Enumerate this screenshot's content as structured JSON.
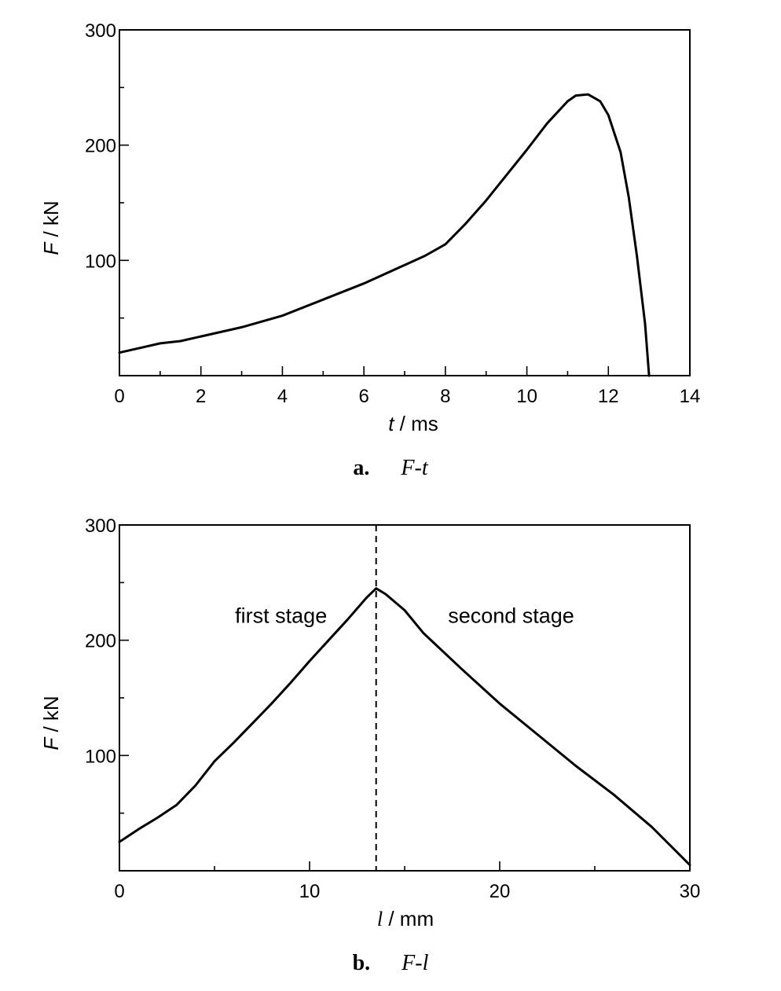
{
  "chart_data": [
    {
      "type": "line",
      "panel_label": "a.",
      "caption": "F-t",
      "xlabel_var": "t",
      "xlabel_unit": " / ms",
      "ylabel_var": "F",
      "ylabel_unit": " / kN",
      "xlim": [
        0,
        14
      ],
      "ylim": [
        0,
        300
      ],
      "xticks": [
        0,
        2,
        4,
        6,
        8,
        10,
        12,
        14
      ],
      "xtick_labels": [
        "0",
        "2",
        "4",
        "6",
        "8",
        "10",
        "12",
        "14"
      ],
      "yticks": [
        100,
        200,
        300
      ],
      "ytick_labels": [
        "100",
        "200",
        "300"
      ],
      "minor_x_step": 1,
      "minor_y_step": 50,
      "grid": false,
      "series": [
        {
          "x": [
            0,
            0.5,
            1,
            1.5,
            2,
            3,
            4,
            5,
            6,
            7,
            7.5,
            8,
            8.5,
            9,
            9.5,
            10,
            10.5,
            11,
            11.2,
            11.5,
            11.8,
            12,
            12.3,
            12.5,
            12.7,
            12.9,
            13.0
          ],
          "y": [
            20,
            24,
            28,
            30,
            34,
            42,
            52,
            66,
            80,
            96,
            104,
            114,
            132,
            152,
            174,
            196,
            219,
            238,
            243,
            244,
            238,
            226,
            194,
            155,
            104,
            45,
            0
          ]
        }
      ]
    },
    {
      "type": "line",
      "panel_label": "b.",
      "caption": "F-l",
      "xlabel_var": "l",
      "xlabel_unit": " / mm",
      "ylabel_var": "F",
      "ylabel_unit": " / kN",
      "xlim": [
        0,
        30
      ],
      "ylim": [
        0,
        300
      ],
      "xticks": [
        0,
        10,
        20,
        30
      ],
      "xtick_labels": [
        "0",
        "10",
        "20",
        "30"
      ],
      "yticks": [
        100,
        200,
        300
      ],
      "ytick_labels": [
        "100",
        "200",
        "300"
      ],
      "minor_x_step": 5,
      "minor_y_step": 50,
      "grid": false,
      "divider_x": 13.5,
      "annotations": [
        {
          "text": "first stage",
          "x": 8.5,
          "y": 215
        },
        {
          "text": "second stage",
          "x": 20.6,
          "y": 215
        }
      ],
      "series": [
        {
          "x": [
            0,
            1,
            2,
            3,
            4,
            5,
            6,
            7,
            8,
            9,
            10,
            11,
            12,
            13,
            13.5,
            14,
            15,
            16,
            18,
            20,
            22,
            24,
            26,
            28,
            30
          ],
          "y": [
            25,
            36,
            46,
            57,
            74,
            95,
            111,
            128,
            145,
            163,
            182,
            200,
            218,
            237,
            245,
            240,
            226,
            206,
            175,
            145,
            118,
            91,
            66,
            38,
            5
          ]
        }
      ]
    }
  ]
}
